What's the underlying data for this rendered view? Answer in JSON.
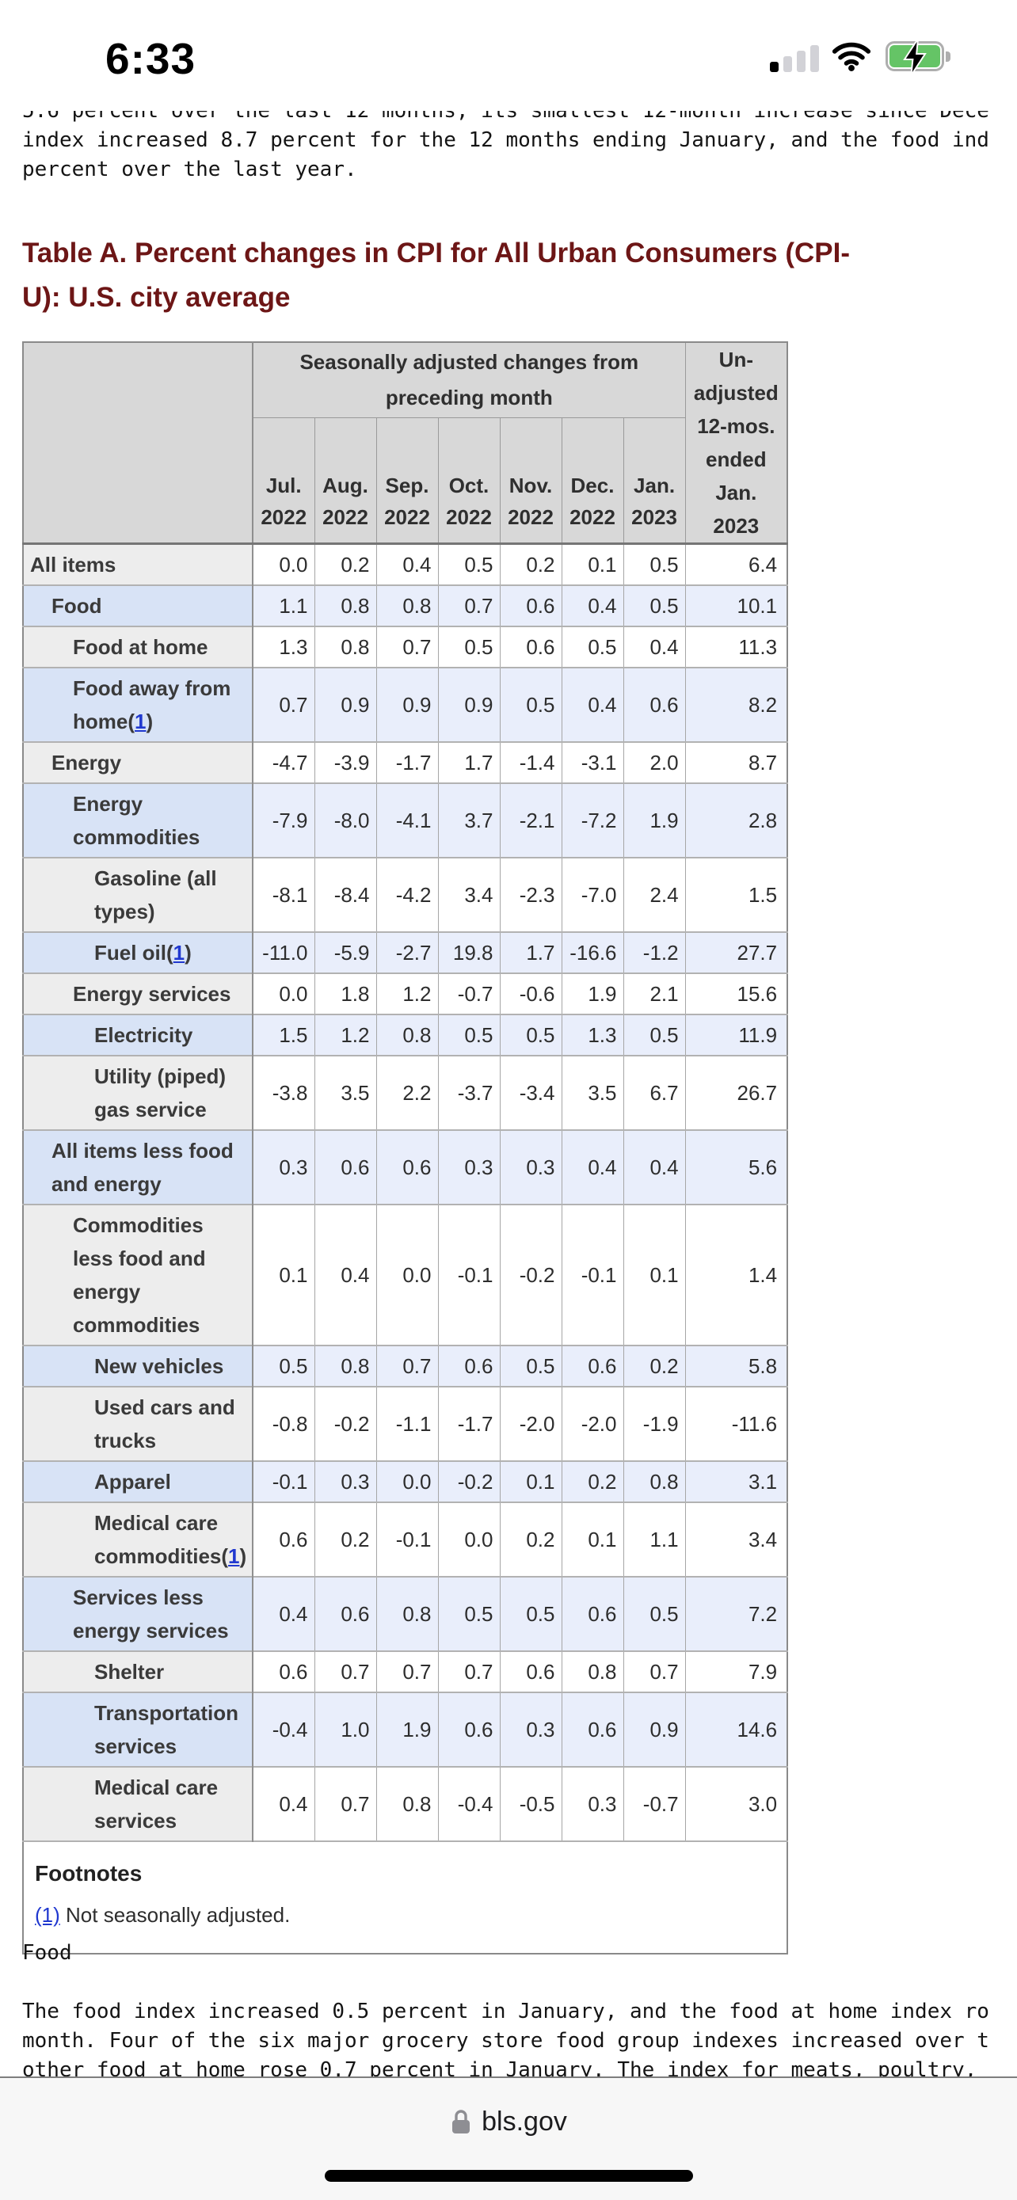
{
  "status_bar": {
    "time": "6:33",
    "battery_color": "#65c466"
  },
  "intro_text": {
    "lines": [
      "5.6 percent over the last 12 months, its smallest 12-month increase since Dece",
      "index increased 8.7 percent for the 12 months ending January, and the food ind",
      "percent over the last year."
    ]
  },
  "heading": {
    "title": "Table A. Percent changes in CPI for All Urban Consumers (CPI-U): U.S. city average",
    "color": "#6d1616"
  },
  "table": {
    "header": {
      "group_label": "Seasonally adjusted changes from preceding month",
      "months": [
        "Jul. 2022",
        "Aug. 2022",
        "Sep. 2022",
        "Oct. 2022",
        "Nov. 2022",
        "Dec. 2022",
        "Jan. 2023"
      ],
      "unadjusted_label": "Un-adjusted 12-mos. ended Jan. 2023"
    },
    "rows": [
      {
        "label": "All items",
        "indent": 0,
        "shade": "white",
        "fn": false,
        "values": [
          "0.0",
          "0.2",
          "0.4",
          "0.5",
          "0.2",
          "0.1",
          "0.5"
        ],
        "yoy": "6.4"
      },
      {
        "label": "Food",
        "indent": 1,
        "shade": "blue",
        "fn": false,
        "values": [
          "1.1",
          "0.8",
          "0.8",
          "0.7",
          "0.6",
          "0.4",
          "0.5"
        ],
        "yoy": "10.1"
      },
      {
        "label": "Food at home",
        "indent": 2,
        "shade": "white",
        "fn": false,
        "values": [
          "1.3",
          "0.8",
          "0.7",
          "0.5",
          "0.6",
          "0.5",
          "0.4"
        ],
        "yoy": "11.3"
      },
      {
        "label": "Food away from home",
        "indent": 2,
        "shade": "blue",
        "fn": true,
        "values": [
          "0.7",
          "0.9",
          "0.9",
          "0.9",
          "0.5",
          "0.4",
          "0.6"
        ],
        "yoy": "8.2"
      },
      {
        "label": "Energy",
        "indent": 1,
        "shade": "white",
        "fn": false,
        "values": [
          "-4.7",
          "-3.9",
          "-1.7",
          "1.7",
          "-1.4",
          "-3.1",
          "2.0"
        ],
        "yoy": "8.7"
      },
      {
        "label": "Energy commodities",
        "indent": 2,
        "shade": "blue",
        "fn": false,
        "values": [
          "-7.9",
          "-8.0",
          "-4.1",
          "3.7",
          "-2.1",
          "-7.2",
          "1.9"
        ],
        "yoy": "2.8"
      },
      {
        "label": "Gasoline (all types)",
        "indent": 3,
        "shade": "white",
        "fn": false,
        "values": [
          "-8.1",
          "-8.4",
          "-4.2",
          "3.4",
          "-2.3",
          "-7.0",
          "2.4"
        ],
        "yoy": "1.5"
      },
      {
        "label": "Fuel oil",
        "indent": 3,
        "shade": "blue",
        "fn": true,
        "values": [
          "-11.0",
          "-5.9",
          "-2.7",
          "19.8",
          "1.7",
          "-16.6",
          "-1.2"
        ],
        "yoy": "27.7"
      },
      {
        "label": "Energy services",
        "indent": 2,
        "shade": "white",
        "fn": false,
        "values": [
          "0.0",
          "1.8",
          "1.2",
          "-0.7",
          "-0.6",
          "1.9",
          "2.1"
        ],
        "yoy": "15.6"
      },
      {
        "label": "Electricity",
        "indent": 3,
        "shade": "blue",
        "fn": false,
        "values": [
          "1.5",
          "1.2",
          "0.8",
          "0.5",
          "0.5",
          "1.3",
          "0.5"
        ],
        "yoy": "11.9"
      },
      {
        "label": "Utility (piped) gas service",
        "indent": 3,
        "shade": "white",
        "fn": false,
        "values": [
          "-3.8",
          "3.5",
          "2.2",
          "-3.7",
          "-3.4",
          "3.5",
          "6.7"
        ],
        "yoy": "26.7"
      },
      {
        "label": "All items less food and energy",
        "indent": 1,
        "shade": "blue",
        "fn": false,
        "values": [
          "0.3",
          "0.6",
          "0.6",
          "0.3",
          "0.3",
          "0.4",
          "0.4"
        ],
        "yoy": "5.6"
      },
      {
        "label": "Commodities less food and energy commodities",
        "indent": 2,
        "shade": "white",
        "fn": false,
        "values": [
          "0.1",
          "0.4",
          "0.0",
          "-0.1",
          "-0.2",
          "-0.1",
          "0.1"
        ],
        "yoy": "1.4"
      },
      {
        "label": "New vehicles",
        "indent": 3,
        "shade": "blue",
        "fn": false,
        "values": [
          "0.5",
          "0.8",
          "0.7",
          "0.6",
          "0.5",
          "0.6",
          "0.2"
        ],
        "yoy": "5.8"
      },
      {
        "label": "Used cars and trucks",
        "indent": 3,
        "shade": "white",
        "fn": false,
        "values": [
          "-0.8",
          "-0.2",
          "-1.1",
          "-1.7",
          "-2.0",
          "-2.0",
          "-1.9"
        ],
        "yoy": "-11.6"
      },
      {
        "label": "Apparel",
        "indent": 3,
        "shade": "blue",
        "fn": false,
        "values": [
          "-0.1",
          "0.3",
          "0.0",
          "-0.2",
          "0.1",
          "0.2",
          "0.8"
        ],
        "yoy": "3.1"
      },
      {
        "label": "Medical care commodities",
        "indent": 3,
        "shade": "white",
        "fn": true,
        "values": [
          "0.6",
          "0.2",
          "-0.1",
          "0.0",
          "0.2",
          "0.1",
          "1.1"
        ],
        "yoy": "3.4"
      },
      {
        "label": "Services less energy services",
        "indent": 2,
        "shade": "blue",
        "fn": false,
        "values": [
          "0.4",
          "0.6",
          "0.8",
          "0.5",
          "0.5",
          "0.6",
          "0.5"
        ],
        "yoy": "7.2"
      },
      {
        "label": "Shelter",
        "indent": 3,
        "shade": "white",
        "fn": false,
        "values": [
          "0.6",
          "0.7",
          "0.7",
          "0.7",
          "0.6",
          "0.8",
          "0.7"
        ],
        "yoy": "7.9"
      },
      {
        "label": "Transportation services",
        "indent": 3,
        "shade": "blue",
        "fn": false,
        "values": [
          "-0.4",
          "1.0",
          "1.9",
          "0.6",
          "0.3",
          "0.6",
          "0.9"
        ],
        "yoy": "14.6"
      },
      {
        "label": "Medical care services",
        "indent": 3,
        "shade": "white",
        "fn": false,
        "values": [
          "0.4",
          "0.7",
          "0.8",
          "-0.4",
          "-0.5",
          "0.3",
          "-0.7"
        ],
        "yoy": "3.0"
      }
    ],
    "footnote_marker": "(1)",
    "footnotes": {
      "title": "Footnotes",
      "marker": "(1)",
      "text": " Not seasonally adjusted."
    }
  },
  "below_text": {
    "section_label": "Food",
    "lines": [
      "The food index increased 0.5 percent in January, and the food at home index ro",
      "month. Four of the six major grocery store food group indexes increased over t",
      "other food at home rose 0.7 percent in January. The index for meats, poultry, "
    ]
  },
  "browser_bar": {
    "domain": "bls.gov"
  }
}
